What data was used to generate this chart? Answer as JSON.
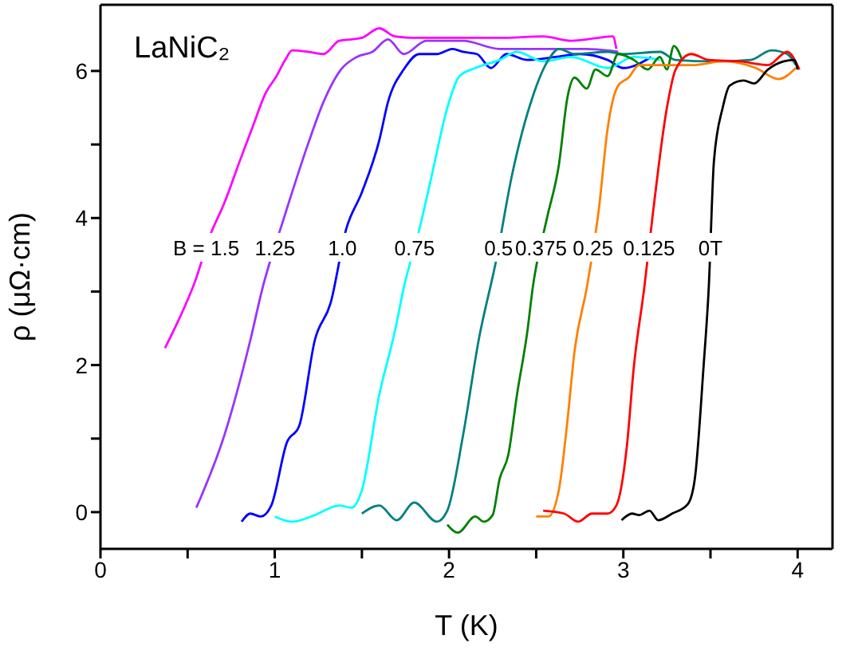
{
  "chart_data": {
    "type": "line",
    "title": "LaNiC₂",
    "xlabel": "T (K)",
    "ylabel": "ρ (μΩ·cm)",
    "xlim": [
      0,
      4.2
    ],
    "ylim": [
      -0.5,
      6.9
    ],
    "xticks": [
      0,
      {
        "value": 0.5,
        "label": null
      },
      1,
      {
        "value": 1.5,
        "label": null
      },
      2,
      {
        "value": 2.5,
        "label": null
      },
      3,
      {
        "value": 3.5,
        "label": null
      },
      4
    ],
    "yticks": [
      0,
      {
        "value": 1,
        "label": null
      },
      2,
      {
        "value": 3,
        "label": null
      },
      4,
      {
        "value": 5,
        "label": null
      },
      6
    ],
    "grid": false,
    "marker": "none",
    "line_style": "solid",
    "series": [
      {
        "name": "B = 1.5",
        "color": "#ff00ff",
        "x": [
          0.37,
          0.45,
          0.54,
          0.63,
          0.71,
          0.8,
          0.87,
          0.95,
          1.01,
          1.06,
          1.1,
          1.19,
          1.28,
          1.37,
          1.44,
          1.5,
          1.6,
          1.69,
          1.81,
          1.99,
          2.29,
          2.54,
          2.7,
          2.94,
          2.96
        ],
        "values": [
          2.23,
          2.62,
          3.12,
          3.77,
          4.2,
          4.78,
          5.22,
          5.71,
          5.93,
          6.15,
          6.28,
          6.26,
          6.23,
          6.41,
          6.43,
          6.45,
          6.58,
          6.47,
          6.45,
          6.45,
          6.45,
          6.47,
          6.41,
          6.47,
          6.3
        ]
      },
      {
        "name": "1.25",
        "color": "#9933ff",
        "x": [
          0.55,
          0.71,
          0.86,
          0.93,
          1.05,
          1.19,
          1.28,
          1.38,
          1.47,
          1.56,
          1.65,
          1.74,
          1.87,
          2.08,
          2.29,
          2.61,
          2.79,
          2.97
        ],
        "values": [
          0.06,
          1.04,
          2.34,
          3.05,
          3.98,
          5.0,
          5.58,
          6.02,
          6.19,
          6.26,
          6.43,
          6.23,
          6.41,
          6.41,
          6.3,
          6.3,
          6.3,
          6.26
        ]
      },
      {
        "name": "1.0",
        "color": "#0000ff",
        "x": [
          0.81,
          0.86,
          0.92,
          0.98,
          1.07,
          1.14,
          1.23,
          1.32,
          1.41,
          1.5,
          1.6,
          1.65,
          1.74,
          1.83,
          1.93,
          2.02,
          2.08,
          2.16,
          2.24,
          2.33,
          2.45,
          2.61,
          2.75,
          2.91,
          3.0,
          3.16
        ],
        "values": [
          -0.13,
          -0.02,
          -0.06,
          0.09,
          0.95,
          1.17,
          2.34,
          2.84,
          3.85,
          4.35,
          5.06,
          5.58,
          6.02,
          6.23,
          6.23,
          6.3,
          6.26,
          6.23,
          6.04,
          6.23,
          6.15,
          6.19,
          6.23,
          6.15,
          6.04,
          6.19
        ]
      },
      {
        "name": "0.75",
        "color": "#00ffff",
        "x": [
          1.0,
          1.1,
          1.23,
          1.37,
          1.44,
          1.5,
          1.6,
          1.69,
          1.74,
          1.83,
          1.9,
          1.99,
          2.06,
          2.15,
          2.29,
          2.39,
          2.54,
          2.7,
          2.91,
          3.06,
          3.21
        ],
        "values": [
          -0.06,
          -0.13,
          -0.04,
          0.09,
          0.06,
          0.3,
          1.6,
          2.47,
          3.05,
          3.85,
          4.57,
          5.5,
          5.93,
          6.04,
          6.15,
          6.26,
          6.13,
          6.19,
          6.04,
          6.19,
          6.15
        ]
      },
      {
        "name": "0.5",
        "color": "#008080",
        "x": [
          1.5,
          1.6,
          1.7,
          1.8,
          1.93,
          1.99,
          2.08,
          2.17,
          2.27,
          2.36,
          2.48,
          2.57,
          2.63,
          2.72,
          2.91,
          3.0,
          3.21,
          3.3,
          3.52,
          3.73,
          3.85,
          3.94,
          3.99
        ],
        "values": [
          -0.02,
          0.09,
          -0.11,
          0.13,
          -0.13,
          0.02,
          1.04,
          2.34,
          3.42,
          4.57,
          5.65,
          6.15,
          6.3,
          6.23,
          6.26,
          6.23,
          6.26,
          6.15,
          6.13,
          6.15,
          6.28,
          6.23,
          6.08
        ]
      },
      {
        "name": "0.375",
        "color": "#008000",
        "x": [
          1.99,
          2.05,
          2.15,
          2.2,
          2.25,
          2.29,
          2.34,
          2.39,
          2.45,
          2.48,
          2.56,
          2.63,
          2.68,
          2.72,
          2.79,
          2.84,
          2.91,
          2.97,
          3.06,
          3.14,
          3.21,
          3.25,
          3.29,
          3.34
        ],
        "values": [
          -0.17,
          -0.28,
          -0.06,
          -0.13,
          -0.04,
          0.45,
          0.78,
          1.6,
          2.47,
          3.05,
          3.98,
          4.72,
          5.65,
          5.91,
          5.76,
          6.02,
          5.93,
          6.23,
          6.15,
          6.02,
          6.19,
          6.02,
          6.34,
          6.13
        ]
      },
      {
        "name": "0.25",
        "color": "#ff8000",
        "x": [
          2.5,
          2.57,
          2.63,
          2.68,
          2.72,
          2.79,
          2.86,
          2.91,
          2.97,
          3.03,
          3.09,
          3.21,
          3.39,
          3.58,
          3.76,
          3.89,
          3.99
        ],
        "values": [
          -0.06,
          -0.06,
          0.3,
          1.26,
          2.19,
          3.05,
          4.13,
          5.22,
          5.8,
          5.91,
          6.08,
          6.08,
          6.08,
          6.13,
          6.04,
          5.89,
          6.04
        ]
      },
      {
        "name": "0.125",
        "color": "#ff0000",
        "x": [
          2.54,
          2.66,
          2.74,
          2.82,
          2.91,
          2.96,
          3.02,
          3.06,
          3.12,
          3.17,
          3.25,
          3.3,
          3.39,
          3.49,
          3.67,
          3.83,
          3.94,
          4.01
        ],
        "values": [
          0.02,
          -0.02,
          -0.13,
          -0.02,
          -0.02,
          0.09,
          0.89,
          1.97,
          3.05,
          4.07,
          5.5,
          6.02,
          6.23,
          6.15,
          6.13,
          6.08,
          6.26,
          6.02
        ]
      },
      {
        "name": "0T",
        "color": "#000000",
        "x": [
          2.99,
          3.05,
          3.09,
          3.15,
          3.2,
          3.28,
          3.37,
          3.41,
          3.46,
          3.49,
          3.52,
          3.57,
          3.61,
          3.69,
          3.75,
          3.83,
          3.92,
          3.98,
          4.0
        ],
        "values": [
          -0.11,
          -0.02,
          -0.04,
          0.02,
          -0.11,
          -0.02,
          0.11,
          0.45,
          1.97,
          3.05,
          4.78,
          5.5,
          5.8,
          5.87,
          5.83,
          6.02,
          6.13,
          6.15,
          6.02
        ]
      }
    ]
  }
}
